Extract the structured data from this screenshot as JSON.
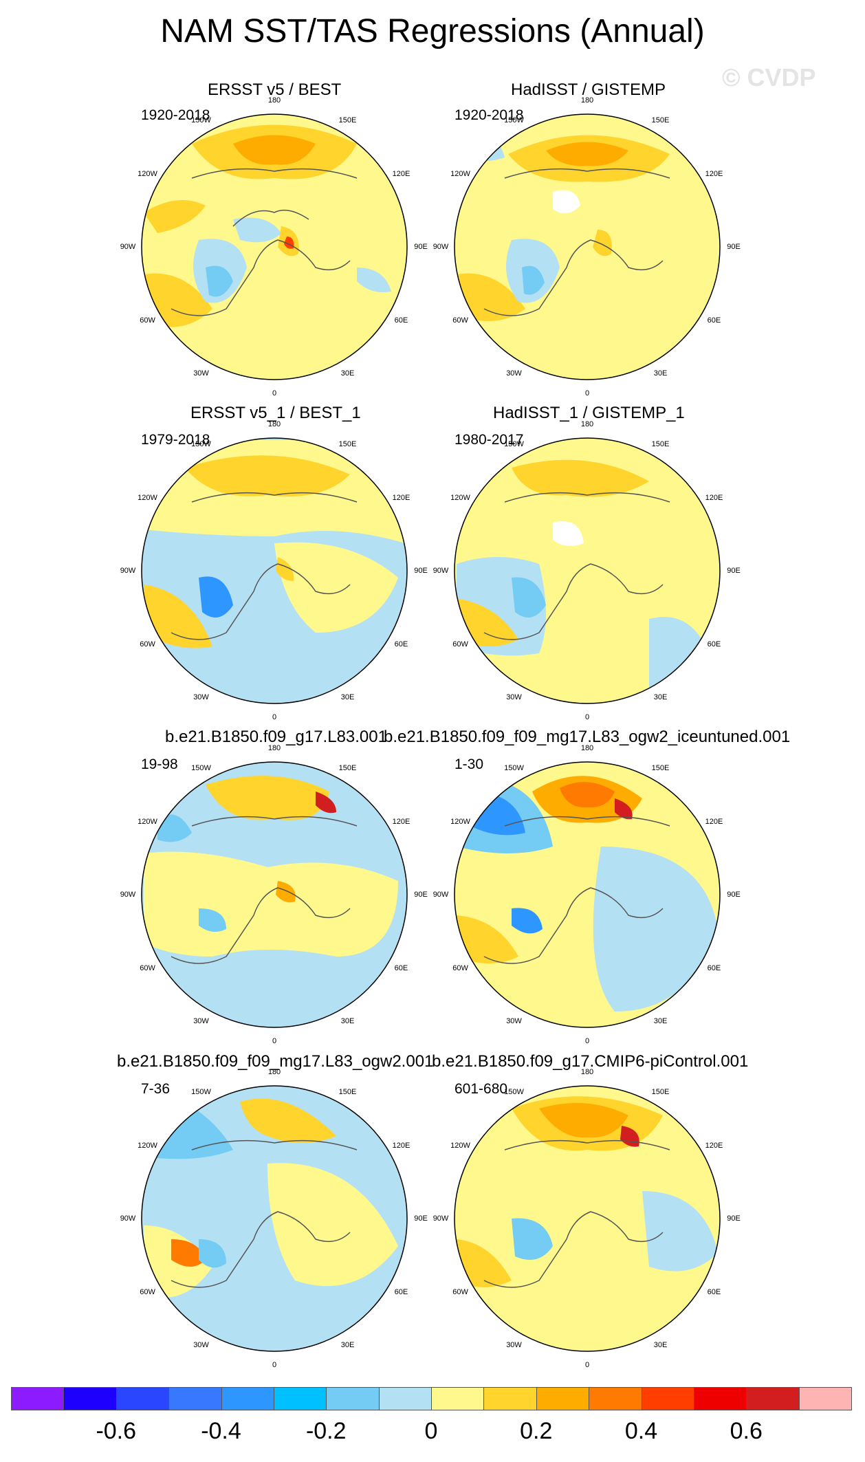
{
  "title": "NAM SST/TAS Regressions (Annual)",
  "watermark": "© CVDP",
  "longitude_labels": [
    "180",
    "150E",
    "120E",
    "90E",
    "60E",
    "30E",
    "0",
    "30W",
    "60W",
    "90W",
    "120W",
    "150W"
  ],
  "colorbar": {
    "colors": [
      "#8c1cff",
      "#1e00ff",
      "#2a46ff",
      "#3878ff",
      "#2e96ff",
      "#00c0ff",
      "#74cbf4",
      "#b4e0f4",
      "#fff88c",
      "#ffd42c",
      "#ffac00",
      "#ff7a00",
      "#ff3e00",
      "#ee0000",
      "#d21e1e",
      "#ffb4b4"
    ],
    "labels": [
      "-0.6",
      "-0.4",
      "-0.2",
      "0",
      "0.2",
      "0.4",
      "0.6"
    ]
  },
  "panels": [
    {
      "title": "ERSST v5 / BEST",
      "period": "1920-2018"
    },
    {
      "title": "HadISST / GISTEMP",
      "period": "1920-2018"
    },
    {
      "title": "ERSST v5_1 / BEST_1",
      "period": "1979-2018"
    },
    {
      "title": "HadISST_1 / GISTEMP_1",
      "period": "1980-2017"
    },
    {
      "title": "b.e21.B1850.f09_g17.L83.001",
      "period": "19-98"
    },
    {
      "title": "b.e21.B1850.f09_f09_mg17.L83_ogw2_iceuntuned.001",
      "period": "1-30"
    },
    {
      "title": "b.e21.B1850.f09_f09_mg17.L83_ogw2.001",
      "period": "7-36"
    },
    {
      "title": "b.e21.B1850.f09_g17.CMIP6-piControl.001",
      "period": "601-680"
    }
  ]
}
